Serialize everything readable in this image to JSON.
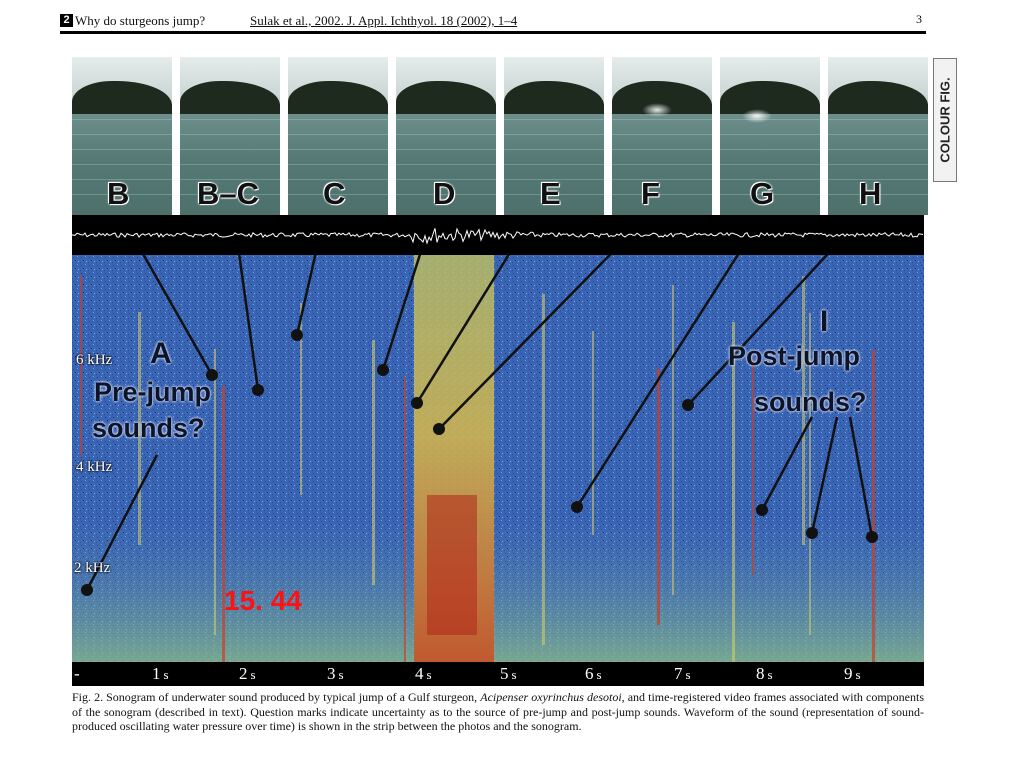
{
  "header": {
    "page_number": "2",
    "running_head": "Why do sturgeons jump?",
    "citation": "Sulak et al., 2002. J. Appl. Ichthyol. 18 (2002), 1–4",
    "page_right": "3"
  },
  "side_tab": "COLOUR FIG.",
  "frame_letters": [
    "B",
    "B–C",
    "C",
    "D",
    "E",
    "F",
    "G",
    "H"
  ],
  "sonogram": {
    "label_A": "A",
    "pre_jump": [
      "Pre-jump",
      "sounds?"
    ],
    "label_I": "I",
    "post_jump": [
      "Post-jump",
      "sounds?"
    ],
    "freq_labels": [
      "6 kHz",
      "4 kHz",
      "2 kHz"
    ],
    "stamp": "15. 44"
  },
  "time_axis": {
    "start": "-",
    "ticks": [
      {
        "n": "1",
        "u": "s"
      },
      {
        "n": "2",
        "u": "s"
      },
      {
        "n": "3",
        "u": "s"
      },
      {
        "n": "4",
        "u": "s"
      },
      {
        "n": "5",
        "u": "s"
      },
      {
        "n": "6",
        "u": "s"
      },
      {
        "n": "7",
        "u": "s"
      },
      {
        "n": "8",
        "u": "s"
      },
      {
        "n": "9",
        "u": "s"
      }
    ]
  },
  "caption": {
    "part1": "Fig. 2. Sonogram of underwater sound produced by typical jump of a Gulf sturgeon, ",
    "species": "Acipenser oxyrinchus desotoi",
    "part2": ", and time-registered video frames associated with components of the sonogram (described in text). Question marks indicate uncertainty as to the source of pre-jump and post-jump sounds. Waveform of the sound (representation of sound-produced oscillating water pressure over time) is shown in the strip between the photos and the sonogram."
  },
  "colors": {
    "sono_low": "#2a4fa8",
    "sono_mid": "#d6d24a",
    "sono_high": "#b22a1a",
    "stamp": "#ff1111"
  }
}
